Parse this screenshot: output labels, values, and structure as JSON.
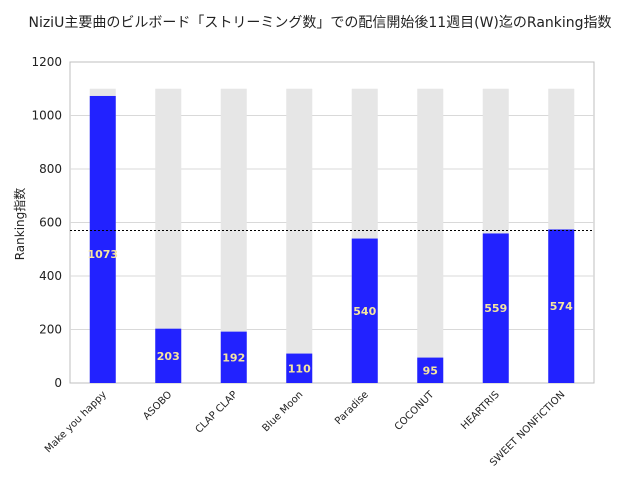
{
  "chart_data": {
    "type": "bar",
    "title": "NiziU主要曲のビルボード「ストリーミング数」での配信開始後11週目(W)迄のRanking指数",
    "xlabel": "",
    "ylabel": "Ranking指数",
    "categories": [
      "Make you happy",
      "ASOBO",
      "CLAP CLAP",
      "Blue Moon",
      "Paradise",
      "COCONUT",
      "HEARTRIS",
      "SWEET NONFICTION"
    ],
    "series": [
      {
        "values": [
          1073,
          203,
          192,
          110,
          540,
          95,
          559,
          574
        ]
      }
    ],
    "background_bar_value": 1100,
    "reference_line": 570,
    "ylim": [
      0,
      1200
    ],
    "yticks": [
      0,
      200,
      400,
      600,
      800,
      1000,
      1200
    ],
    "grid": true,
    "legend": "none",
    "colors": {
      "bar": "#2222ff",
      "background_bar": "#e6e6e6",
      "data_label": "#f5e5a0",
      "reference_line": "#000000",
      "grid": "#d9d9d9"
    }
  }
}
